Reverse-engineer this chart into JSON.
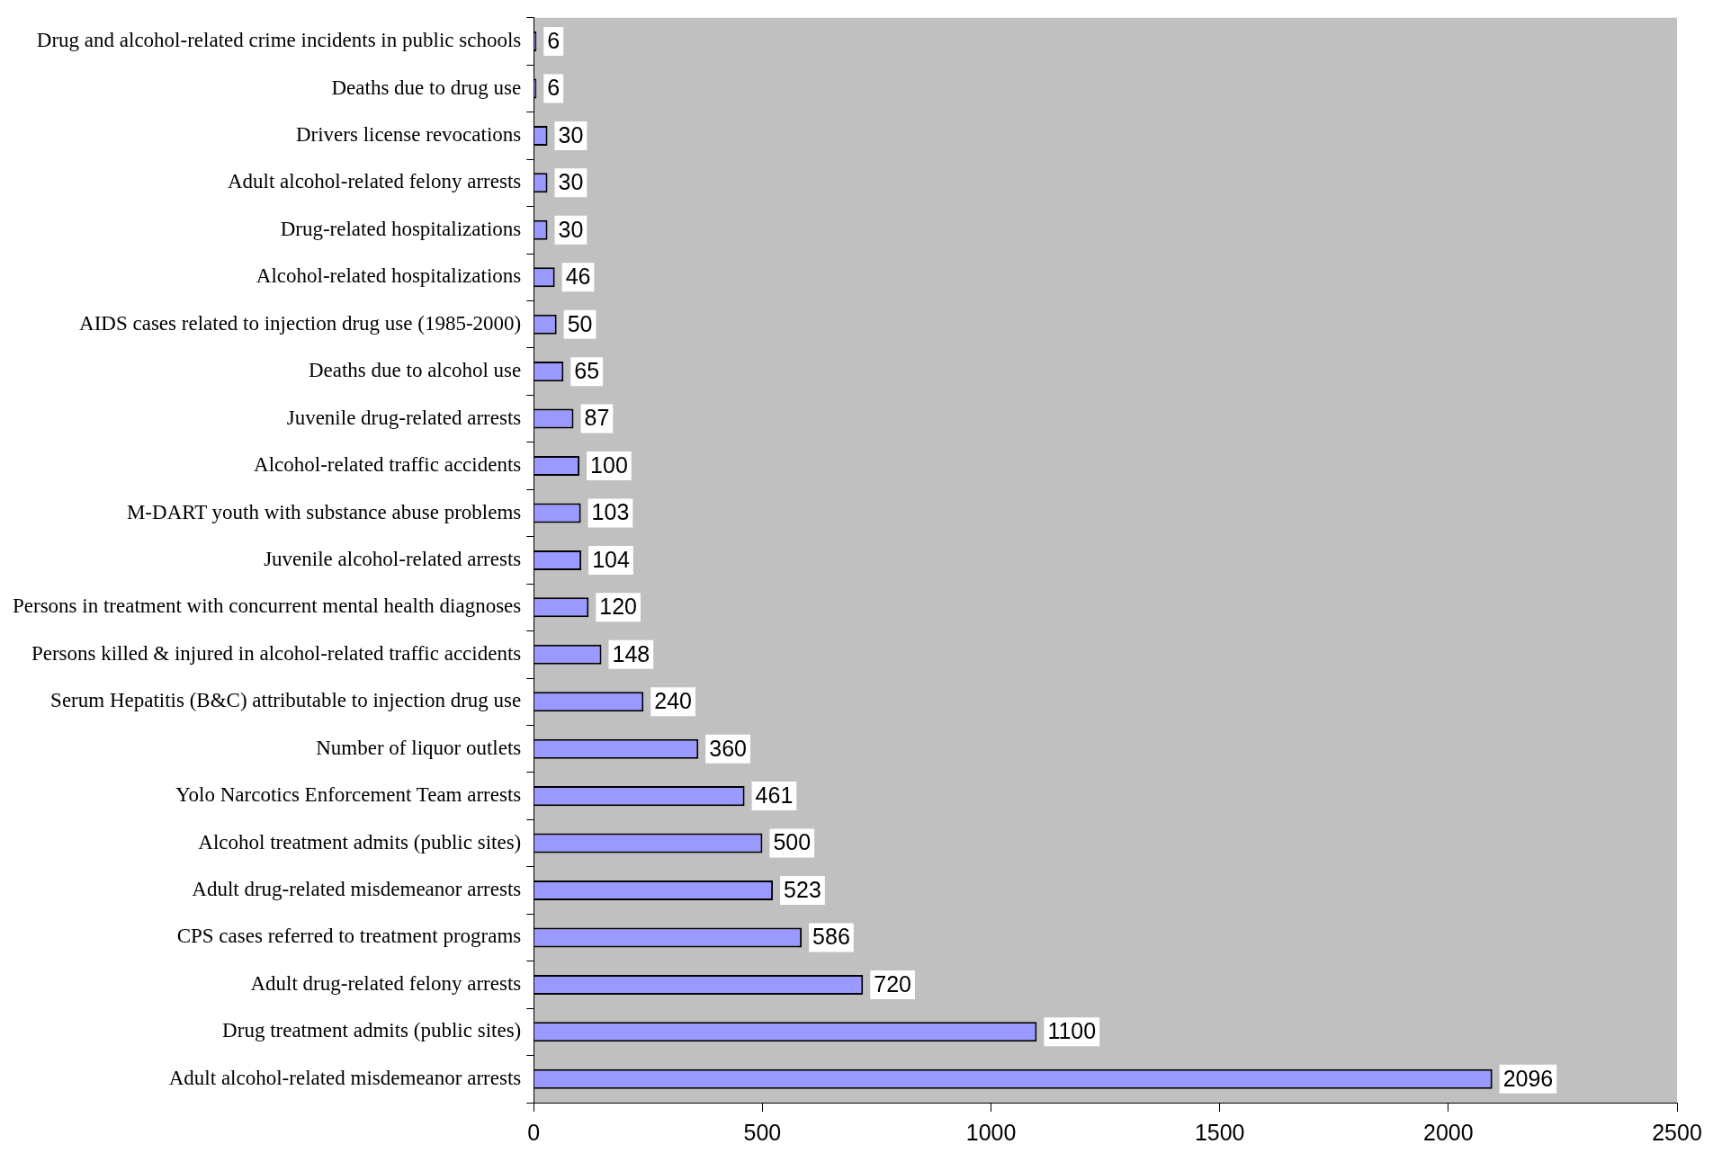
{
  "chart_data": {
    "type": "bar",
    "orientation": "horizontal",
    "categories": [
      "Drug and alcohol-related crime incidents in public schools",
      "Deaths due to drug use",
      "Drivers license revocations",
      "Adult alcohol-related felony arrests",
      "Drug-related hospitalizations",
      "Alcohol-related hospitalizations",
      "AIDS cases related to injection drug use (1985-2000)",
      "Deaths due to alcohol use",
      "Juvenile drug-related arrests",
      "Alcohol-related traffic accidents",
      "M-DART youth with substance abuse problems",
      "Juvenile alcohol-related arrests",
      "Persons in treatment with concurrent mental health diagnoses",
      "Persons killed & injured in alcohol-related traffic accidents",
      "Serum Hepatitis (B&C) attributable to injection drug use",
      "Number of liquor outlets",
      "Yolo Narcotics Enforcement Team arrests",
      "Alcohol treatment admits (public sites)",
      "Adult drug-related misdemeanor arrests",
      "CPS cases referred to treatment programs",
      "Adult drug-related felony arrests",
      "Drug treatment admits (public sites)",
      "Adult alcohol-related misdemeanor arrests"
    ],
    "values": [
      6,
      6,
      30,
      30,
      30,
      46,
      50,
      65,
      87,
      100,
      103,
      104,
      120,
      148,
      240,
      360,
      461,
      500,
      523,
      586,
      720,
      1100,
      2096
    ],
    "color": "#9999ff",
    "xlim": [
      0,
      2500
    ],
    "xticks": [
      0,
      500,
      1000,
      1500,
      2000,
      2500
    ],
    "data_labels": true,
    "legend": false
  }
}
